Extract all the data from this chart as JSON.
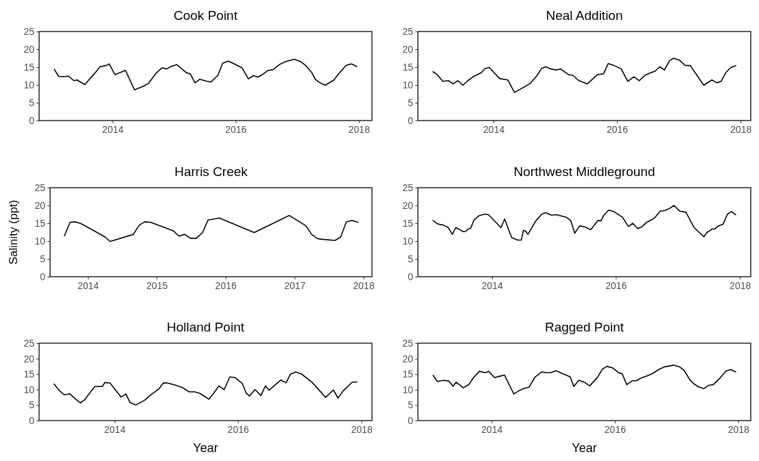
{
  "chart_data": [
    {
      "type": "line",
      "title": "Cook Point",
      "color": "#000000",
      "xlim": [
        "2012-10-22",
        "2018-03-20"
      ],
      "xticks": [
        "2014",
        "2016",
        "2018"
      ],
      "ylim": [
        0,
        25
      ],
      "yticks": [
        0,
        5,
        10,
        15,
        20,
        25
      ],
      "x": [
        "2013-01-20",
        "2013-02-15",
        "2013-03-16",
        "2013-04-15",
        "2013-05-16",
        "2013-06-04",
        "2013-07-20",
        "2013-08-18",
        "2013-09-18",
        "2013-10-18",
        "2013-11-26",
        "2013-12-12",
        "2014-01-15",
        "2014-03-18",
        "2014-05-11",
        "2014-07-06",
        "2014-08-01",
        "2014-09-20",
        "2014-10-21",
        "2014-11-19",
        "2014-12-14",
        "2015-01-17",
        "2015-03-16",
        "2015-04-07",
        "2015-05-05",
        "2015-06-03",
        "2015-07-08",
        "2015-08-06",
        "2015-09-18",
        "2015-10-16",
        "2015-11-19",
        "2015-12-20",
        "2016-02-08",
        "2016-03-17",
        "2016-04-15",
        "2016-05-10",
        "2016-06-08",
        "2016-07-13",
        "2016-08-11",
        "2016-09-16",
        "2016-10-21",
        "2016-12-13",
        "2017-01-20",
        "2017-02-23",
        "2017-03-29",
        "2017-04-17",
        "2017-05-12",
        "2017-06-16",
        "2017-08-06",
        "2017-09-07",
        "2017-10-17",
        "2017-11-18",
        "2017-12-20"
      ],
      "values": [
        14.4,
        12.4,
        12.3,
        12.5,
        11.2,
        11.4,
        10.1,
        11.7,
        13.3,
        15.1,
        15.5,
        15.9,
        12.9,
        14.1,
        8.6,
        9.7,
        10.4,
        13.5,
        14.8,
        14.5,
        15.2,
        15.7,
        13.4,
        13.1,
        10.6,
        11.6,
        11.1,
        10.8,
        12.7,
        16.1,
        16.7,
        16.0,
        14.8,
        11.7,
        12.6,
        12.2,
        12.9,
        14.1,
        14.3,
        15.7,
        16.5,
        17.2,
        16.6,
        15.3,
        13.4,
        11.6,
        10.7,
        9.9,
        11.4,
        13.3,
        15.5,
        15.9,
        15.2
      ]
    },
    {
      "type": "line",
      "title": "Neal Addition",
      "color": "#000000",
      "xlim": [
        "2012-10-11",
        "2018-03-02"
      ],
      "xticks": [
        "2014",
        "2016",
        "2018"
      ],
      "ylim": [
        0,
        25
      ],
      "yticks": [
        0,
        5,
        10,
        15,
        20,
        25
      ],
      "x": [
        "2013-01-08",
        "2013-02-02",
        "2013-03-07",
        "2013-04-09",
        "2013-05-07",
        "2013-06-05",
        "2013-07-04",
        "2013-08-02",
        "2013-09-05",
        "2013-10-20",
        "2013-11-09",
        "2013-12-06",
        "2014-02-06",
        "2014-03-26",
        "2014-05-05",
        "2014-07-08",
        "2014-08-07",
        "2014-09-16",
        "2014-10-12",
        "2014-11-06",
        "2014-12-04",
        "2015-01-07",
        "2015-02-01",
        "2015-03-20",
        "2015-04-16",
        "2015-05-17",
        "2015-07-10",
        "2015-09-08",
        "2015-10-13",
        "2015-11-10",
        "2015-12-13",
        "2016-01-26",
        "2016-03-05",
        "2016-04-09",
        "2016-05-12",
        "2016-06-15",
        "2016-07-12",
        "2016-08-14",
        "2016-09-10",
        "2016-10-08",
        "2016-11-06",
        "2016-12-01",
        "2017-01-06",
        "2017-02-07",
        "2017-03-10",
        "2017-05-28",
        "2017-07-15",
        "2017-08-13",
        "2017-09-07",
        "2017-10-06",
        "2017-11-04",
        "2017-12-03"
      ],
      "values": [
        13.7,
        12.9,
        11.0,
        11.2,
        10.3,
        11.2,
        9.9,
        11.2,
        12.4,
        13.4,
        14.5,
        14.9,
        11.8,
        11.4,
        7.9,
        9.6,
        10.5,
        12.7,
        14.6,
        15.1,
        14.5,
        14.2,
        14.5,
        12.9,
        12.7,
        11.3,
        10.3,
        12.9,
        13.1,
        16.0,
        15.5,
        14.5,
        11.0,
        12.3,
        11.2,
        12.7,
        13.3,
        13.9,
        15.1,
        14.2,
        16.8,
        17.5,
        16.9,
        15.5,
        15.4,
        9.9,
        11.4,
        10.6,
        11.0,
        13.5,
        14.9,
        15.4
      ]
    },
    {
      "type": "line",
      "title": "Harris Creek",
      "ylabel": "Salinity (ppt)",
      "color": "#000000",
      "xlim": [
        "2013-06-15",
        "2018-02-15"
      ],
      "xticks": [
        "2014",
        "2015",
        "2016",
        "2017",
        "2018"
      ],
      "ylim": [
        0,
        25
      ],
      "yticks": [
        0,
        5,
        10,
        15,
        20,
        25
      ],
      "x": [
        "2013-08-30",
        "2013-09-29",
        "2013-10-28",
        "2013-11-26",
        "2014-01-10",
        "2014-04-01",
        "2014-04-29",
        "2014-08-30",
        "2014-10-01",
        "2014-10-29",
        "2014-11-30",
        "2015-03-30",
        "2015-04-29",
        "2015-05-30",
        "2015-06-28",
        "2015-07-30",
        "2015-09-01",
        "2015-09-30",
        "2015-11-29",
        "2016-06-01",
        "2016-12-04",
        "2017-03-02",
        "2017-04-01",
        "2017-05-02",
        "2017-05-30",
        "2017-08-03",
        "2017-09-02",
        "2017-10-02",
        "2017-11-01",
        "2017-12-03"
      ],
      "values": [
        11.5,
        15.3,
        15.4,
        14.9,
        13.6,
        11.2,
        9.9,
        11.9,
        14.5,
        15.4,
        15.3,
        12.9,
        11.4,
        11.9,
        10.8,
        10.8,
        12.4,
        15.9,
        16.5,
        12.4,
        17.2,
        14.3,
        11.9,
        10.7,
        10.5,
        10.2,
        11.1,
        15.4,
        15.8,
        15.3
      ]
    },
    {
      "type": "line",
      "title": "Northwest Middleground",
      "color": "#000000",
      "xlim": [
        "2012-10-22",
        "2018-03-06"
      ],
      "xticks": [
        "2014",
        "2016",
        "2018"
      ],
      "ylim": [
        0,
        25
      ],
      "yticks": [
        0,
        5,
        10,
        15,
        20,
        25
      ],
      "x": [
        "2013-01-19",
        "2013-02-16",
        "2013-03-21",
        "2013-04-19",
        "2013-05-13",
        "2013-06-02",
        "2013-06-23",
        "2013-07-14",
        "2013-07-28",
        "2013-08-15",
        "2013-08-29",
        "2013-09-18",
        "2013-10-16",
        "2013-11-21",
        "2013-12-12",
        "2014-02-23",
        "2014-03-17",
        "2014-04-27",
        "2014-06-02",
        "2014-06-23",
        "2014-07-05",
        "2014-07-17",
        "2014-08-01",
        "2014-09-18",
        "2014-10-23",
        "2014-11-14",
        "2014-12-16",
        "2015-01-18",
        "2015-03-15",
        "2015-04-10",
        "2015-05-04",
        "2015-06-02",
        "2015-07-07",
        "2015-08-06",
        "2015-09-18",
        "2015-10-06",
        "2015-10-20",
        "2015-11-19",
        "2015-12-20",
        "2016-02-09",
        "2016-03-15",
        "2016-04-10",
        "2016-05-09",
        "2016-06-05",
        "2016-07-01",
        "2016-07-30",
        "2016-08-20",
        "2016-09-18",
        "2016-10-17",
        "2016-11-10",
        "2016-12-09",
        "2017-01-12",
        "2017-02-17",
        "2017-04-06",
        "2017-06-03",
        "2017-06-20",
        "2017-07-08",
        "2017-07-20",
        "2017-08-06",
        "2017-08-28",
        "2017-09-23",
        "2017-10-20",
        "2017-11-13",
        "2017-12-07"
      ],
      "values": [
        15.8,
        14.8,
        14.5,
        13.8,
        11.9,
        13.8,
        13.3,
        12.7,
        12.7,
        13.4,
        13.6,
        16.0,
        17.1,
        17.6,
        17.4,
        13.8,
        16.2,
        11.0,
        10.3,
        10.3,
        12.9,
        12.9,
        11.9,
        15.8,
        17.6,
        18.0,
        17.3,
        17.4,
        16.7,
        15.8,
        12.2,
        14.3,
        13.9,
        13.2,
        15.8,
        15.7,
        17.1,
        18.7,
        18.3,
        16.7,
        14.1,
        15.0,
        13.5,
        14.1,
        15.3,
        16.0,
        16.7,
        18.4,
        18.6,
        19.1,
        20.0,
        18.4,
        18.1,
        13.8,
        11.2,
        12.4,
        12.9,
        13.4,
        13.4,
        14.3,
        14.7,
        17.6,
        18.3,
        17.4
      ]
    },
    {
      "type": "line",
      "title": "Holland Point",
      "xlabel": "Year",
      "color": "#000000",
      "xlim": [
        "2012-10-12",
        "2018-03-04"
      ],
      "xticks": [
        "2014",
        "2016",
        "2018"
      ],
      "ylim": [
        0,
        25
      ],
      "yticks": [
        0,
        5,
        10,
        15,
        20,
        25
      ],
      "x": [
        "2013-01-09",
        "2013-02-04",
        "2013-03-09",
        "2013-04-11",
        "2013-05-12",
        "2013-06-13",
        "2013-07-08",
        "2013-08-09",
        "2013-09-07",
        "2013-10-21",
        "2013-11-05",
        "2013-12-06",
        "2014-02-09",
        "2014-03-10",
        "2014-04-02",
        "2014-05-07",
        "2014-06-29",
        "2014-08-01",
        "2014-09-20",
        "2014-10-18",
        "2014-11-12",
        "2014-12-24",
        "2015-02-06",
        "2015-03-18",
        "2015-04-20",
        "2015-05-21",
        "2015-06-15",
        "2015-07-14",
        "2015-08-12",
        "2015-09-10",
        "2015-10-12",
        "2015-11-14",
        "2015-12-15",
        "2016-01-27",
        "2016-02-18",
        "2016-03-09",
        "2016-04-11",
        "2016-05-16",
        "2016-06-12",
        "2016-07-04",
        "2016-08-06",
        "2016-09-11",
        "2016-10-12",
        "2016-11-07",
        "2016-12-08",
        "2017-01-10",
        "2017-03-16",
        "2017-06-03",
        "2017-07-19",
        "2017-08-15",
        "2017-09-15",
        "2017-11-07",
        "2017-12-05"
      ],
      "values": [
        11.8,
        10.0,
        8.3,
        8.7,
        7.1,
        5.7,
        6.7,
        9.0,
        11.0,
        11.0,
        12.3,
        12.1,
        7.6,
        8.6,
        5.9,
        5.0,
        6.6,
        8.2,
        10.2,
        12.2,
        12.1,
        11.5,
        10.7,
        9.3,
        9.3,
        8.8,
        7.9,
        6.9,
        8.9,
        11.2,
        10.0,
        14.1,
        13.9,
        12.0,
        9.0,
        7.9,
        10.0,
        8.1,
        11.2,
        9.8,
        11.4,
        13.1,
        12.2,
        15.0,
        15.7,
        15.1,
        12.3,
        7.5,
        9.9,
        7.3,
        9.6,
        12.4,
        12.5
      ]
    },
    {
      "type": "line",
      "title": "Ragged Point",
      "xlabel": "Year",
      "color": "#000000",
      "xlim": [
        "2012-10-22",
        "2018-03-16"
      ],
      "xticks": [
        "2014",
        "2016",
        "2018"
      ],
      "ylim": [
        0,
        25
      ],
      "yticks": [
        0,
        5,
        10,
        15,
        20,
        25
      ],
      "x": [
        "2013-01-20",
        "2013-02-14",
        "2013-03-21",
        "2013-04-22",
        "2013-05-18",
        "2013-06-05",
        "2013-07-18",
        "2013-08-19",
        "2013-09-18",
        "2013-10-20",
        "2013-11-25",
        "2013-12-16",
        "2014-01-18",
        "2014-02-16",
        "2014-03-19",
        "2014-04-17",
        "2014-05-13",
        "2014-06-11",
        "2014-07-13",
        "2014-08-11",
        "2014-09-16",
        "2014-10-25",
        "2014-11-20",
        "2014-12-19",
        "2015-01-17",
        "2015-03-06",
        "2015-04-12",
        "2015-05-03",
        "2015-06-01",
        "2015-07-04",
        "2015-08-05",
        "2015-09-18",
        "2015-10-19",
        "2015-11-14",
        "2015-12-16",
        "2016-01-26",
        "2016-02-14",
        "2016-03-11",
        "2016-04-14",
        "2016-05-08",
        "2016-06-10",
        "2016-07-13",
        "2016-08-11",
        "2016-09-20",
        "2016-10-25",
        "2016-12-14",
        "2017-01-20",
        "2017-02-15",
        "2017-03-20",
        "2017-04-12",
        "2017-05-11",
        "2017-06-12",
        "2017-07-10",
        "2017-08-06",
        "2017-09-14",
        "2017-10-20",
        "2017-11-18",
        "2017-12-16"
      ],
      "values": [
        14.6,
        12.6,
        13.0,
        12.8,
        11.1,
        12.4,
        10.6,
        11.6,
        14.0,
        15.9,
        15.5,
        15.9,
        13.9,
        14.3,
        14.7,
        11.4,
        8.6,
        9.6,
        10.4,
        10.8,
        14.1,
        15.7,
        15.5,
        15.5,
        16.1,
        15.0,
        14.1,
        11.0,
        13.0,
        12.4,
        11.2,
        13.8,
        16.6,
        17.5,
        17.1,
        15.4,
        15.1,
        11.6,
        12.9,
        12.9,
        13.9,
        14.5,
        15.2,
        16.6,
        17.4,
        17.9,
        17.3,
        16.2,
        13.2,
        11.9,
        10.9,
        10.3,
        11.4,
        11.6,
        13.7,
        16.0,
        16.5,
        15.7
      ]
    }
  ]
}
